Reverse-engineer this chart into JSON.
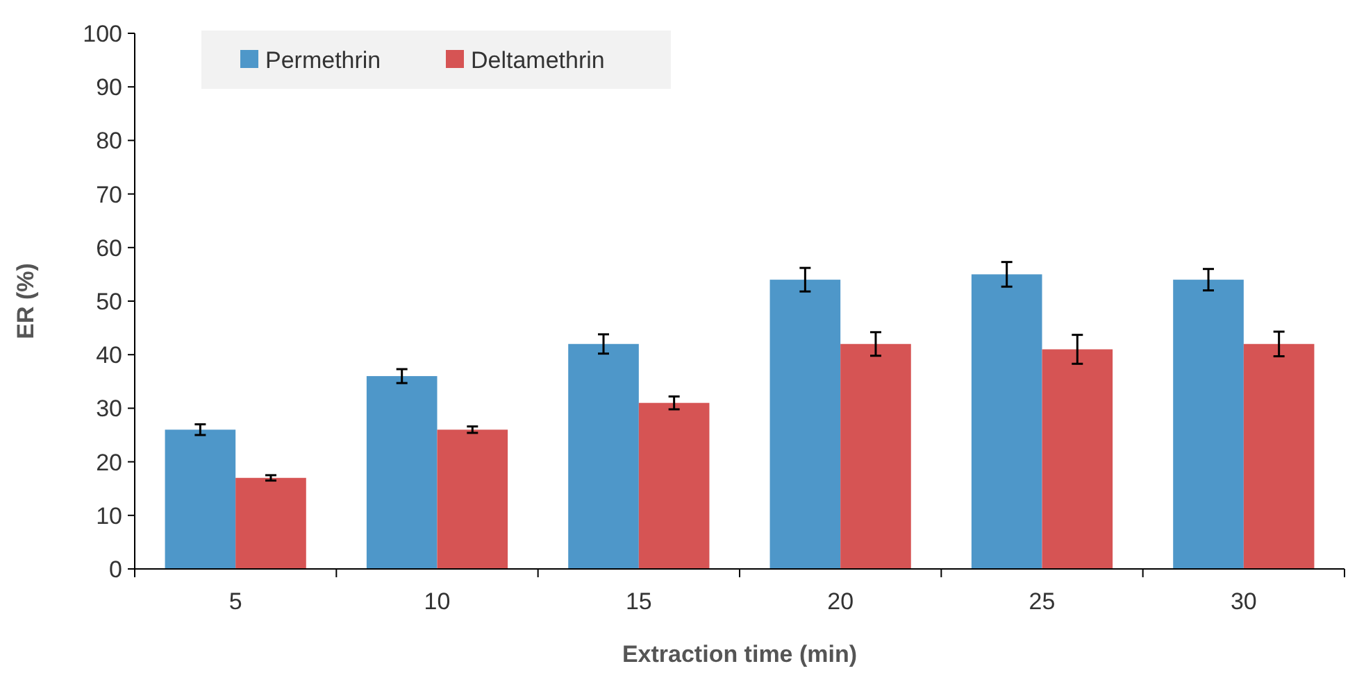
{
  "chart_data": {
    "type": "bar",
    "xlabel": "Extraction time (min)",
    "ylabel": "ER (%)",
    "categories": [
      "5",
      "10",
      "15",
      "20",
      "25",
      "30"
    ],
    "series": [
      {
        "name": "Permethrin",
        "color": "#4e97c9",
        "values": [
          26,
          36,
          42,
          54,
          55,
          54
        ],
        "errors": [
          1,
          1.3,
          1.8,
          2.2,
          2.3,
          2
        ]
      },
      {
        "name": "Deltamethrin",
        "color": "#d65454",
        "values": [
          17,
          26,
          31,
          42,
          41,
          42
        ],
        "errors": [
          0.5,
          0.6,
          1.2,
          2.2,
          2.7,
          2.3
        ]
      }
    ],
    "ylim": [
      0,
      100
    ],
    "yticks": [
      0,
      10,
      20,
      30,
      40,
      50,
      60,
      70,
      80,
      90,
      100
    ],
    "grid": false,
    "legend": "top left"
  }
}
